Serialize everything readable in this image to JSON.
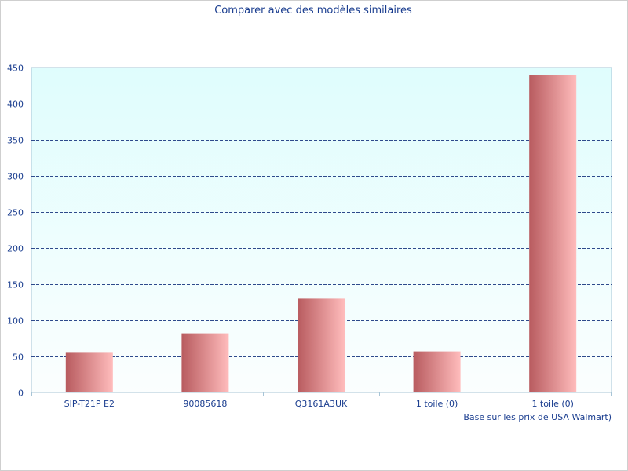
{
  "chart_data": {
    "type": "bar",
    "title": "Comparer avec des modèles similaires",
    "categories": [
      "SIP-T21P E2",
      "90085618",
      "Q3161A3UK",
      "1 toile (0)",
      "1 toile (0)"
    ],
    "values": [
      55,
      82,
      130,
      57,
      440
    ],
    "ylim": [
      0,
      450
    ],
    "yticks": [
      0,
      50,
      100,
      150,
      200,
      250,
      300,
      350,
      400,
      450
    ],
    "grid": true,
    "footnote": "Base sur les prix de USA Walmart)"
  },
  "colors": {
    "bar_dark": "#b85b5f",
    "bar_light": "#ffbcbc",
    "plot_top": "#dffdfd",
    "plot_bottom": "#fbfefe",
    "grid": "#2e4a8c",
    "axis": "#a7c4d6",
    "text": "#1a3d8f"
  }
}
